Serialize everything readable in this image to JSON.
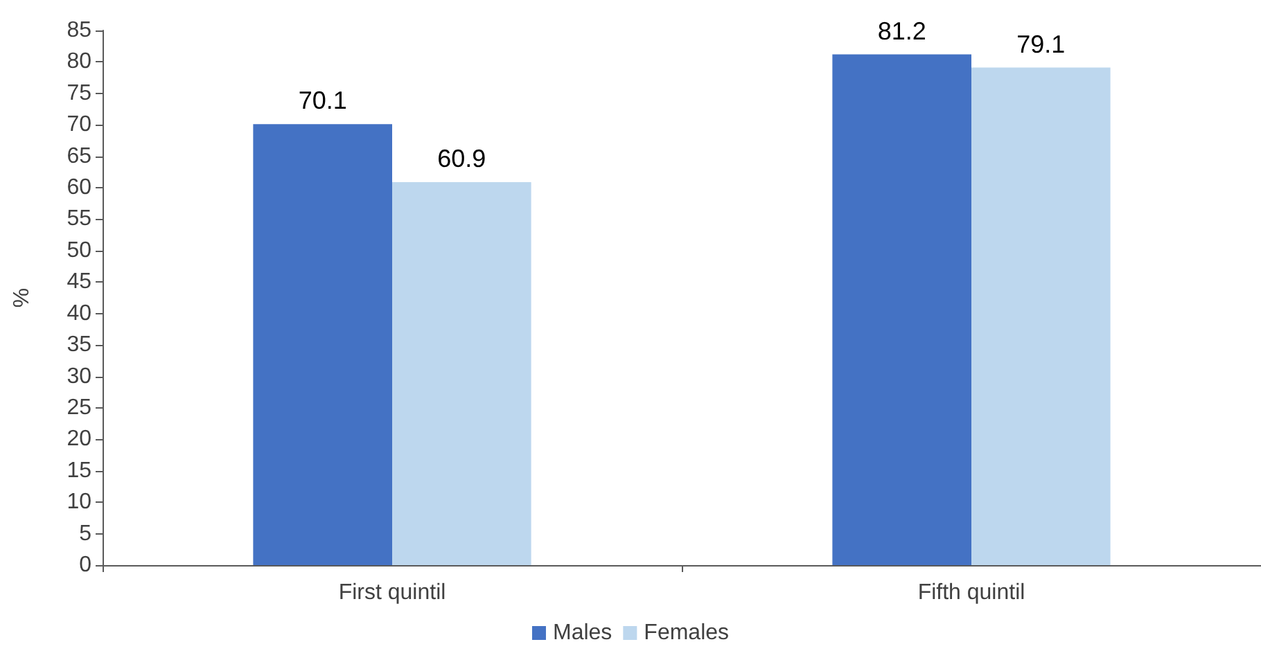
{
  "chart_data": {
    "type": "bar",
    "ylabel": "%",
    "categories": [
      "First quintil",
      "Fifth quintil"
    ],
    "series": [
      {
        "name": "Males",
        "color": "#4472c4",
        "values": [
          70.1,
          81.2
        ]
      },
      {
        "name": "Females",
        "color": "#bdd7ee",
        "values": [
          60.9,
          79.1
        ]
      }
    ],
    "ylim": [
      0,
      85
    ],
    "yticks": [
      0,
      5,
      10,
      15,
      20,
      25,
      30,
      35,
      40,
      45,
      50,
      55,
      60,
      65,
      70,
      75,
      80,
      85
    ],
    "grid": false,
    "legend": "bottom",
    "data_labels": true
  }
}
